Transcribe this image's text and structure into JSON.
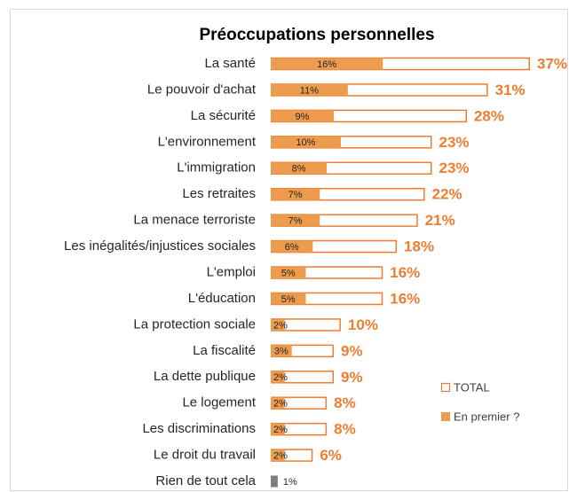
{
  "chart_data": {
    "type": "bar",
    "orientation": "horizontal",
    "title": "Préoccupations personnelles",
    "categories": [
      "La santé",
      "Le pouvoir d'achat",
      "La sécurité",
      "L'environnement",
      "L'immigration",
      "Les retraites",
      "La menace terroriste",
      "Les inégalités/injustices sociales",
      "L'emploi",
      "L'éducation",
      "La protection sociale",
      "La fiscalité",
      "La dette publique",
      "Le logement",
      "Les discriminations",
      "Le droit du travail",
      "Rien de tout cela"
    ],
    "series": [
      {
        "name": "TOTAL",
        "color": "#ed7d31",
        "style": "outline",
        "values": [
          37,
          31,
          28,
          23,
          23,
          22,
          21,
          18,
          16,
          16,
          10,
          9,
          9,
          8,
          8,
          6,
          null
        ],
        "value_labels": [
          "37%",
          "31%",
          "28%",
          "23%",
          "23%",
          "22%",
          "21%",
          "18%",
          "16%",
          "16%",
          "10%",
          "9%",
          "9%",
          "8%",
          "8%",
          "6%",
          null
        ]
      },
      {
        "name": "En premier ?",
        "color": "#ed9b4c",
        "style": "filled",
        "colors": [
          "#ed9b4c",
          "#ed9b4c",
          "#ed9b4c",
          "#ed9b4c",
          "#ed9b4c",
          "#ed9b4c",
          "#ed9b4c",
          "#ed9b4c",
          "#ed9b4c",
          "#ed9b4c",
          "#ed9b4c",
          "#ed9b4c",
          "#ed9b4c",
          "#ed9b4c",
          "#ed9b4c",
          "#ed9b4c",
          "#7f7f7f"
        ],
        "values": [
          16,
          11,
          9,
          10,
          8,
          7,
          7,
          6,
          5,
          5,
          2,
          3,
          2,
          2,
          2,
          2,
          1
        ],
        "value_labels": [
          "16%",
          "11%",
          "9%",
          "10%",
          "8%",
          "7%",
          "7%",
          "6%",
          "5%",
          "5%",
          "2%",
          "3%",
          "2%",
          "2%",
          "2%",
          "2%",
          "1%"
        ]
      }
    ]
  }
}
